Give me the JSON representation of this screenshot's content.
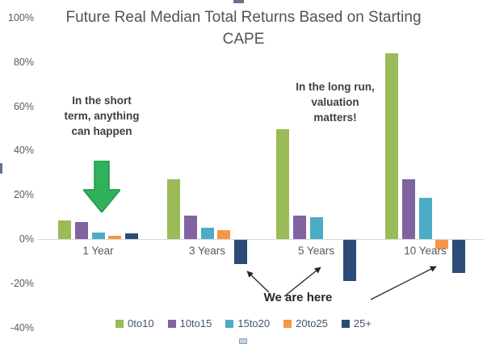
{
  "chart_data": {
    "type": "bar",
    "title": "Future Real Median Total Returns Based on Starting CAPE",
    "title_lines": [
      "Future Real Median Total Returns Based on Starting",
      "CAPE"
    ],
    "categories": [
      "1 Year",
      "3 Years",
      "5 Years",
      "10 Years"
    ],
    "series": [
      {
        "name": "0to10",
        "color": "#9BBB59",
        "values": [
          8.5,
          27,
          49.5,
          84
        ]
      },
      {
        "name": "10to15",
        "color": "#8064A2",
        "values": [
          7.5,
          10.5,
          10.5,
          27
        ]
      },
      {
        "name": "15to20",
        "color": "#4BACC6",
        "values": [
          3,
          5,
          10,
          18.5
        ]
      },
      {
        "name": "20to25",
        "color": "#F79646",
        "values": [
          1.5,
          4,
          0,
          -4
        ]
      },
      {
        "name": "25+",
        "color": "#2C4C77",
        "values": [
          2.5,
          -11,
          -18.5,
          -15
        ]
      }
    ],
    "ylim": [
      -40,
      100
    ],
    "ytick_step": 20,
    "ytick_labels": [
      "100%",
      "80%",
      "60%",
      "40%",
      "20%",
      "0%",
      "-20%",
      "-40%"
    ],
    "grid": "zero-line-only",
    "legend_position": "bottom",
    "annotations": {
      "short_term": {
        "lines": [
          "In the short",
          "term, anything",
          "can happen"
        ]
      },
      "long_run": {
        "lines": [
          "In the long run,",
          "valuation",
          "matters!"
        ]
      },
      "we_are_here": {
        "text": "We are here"
      },
      "down_arrow_color": "#2FB25A"
    }
  }
}
